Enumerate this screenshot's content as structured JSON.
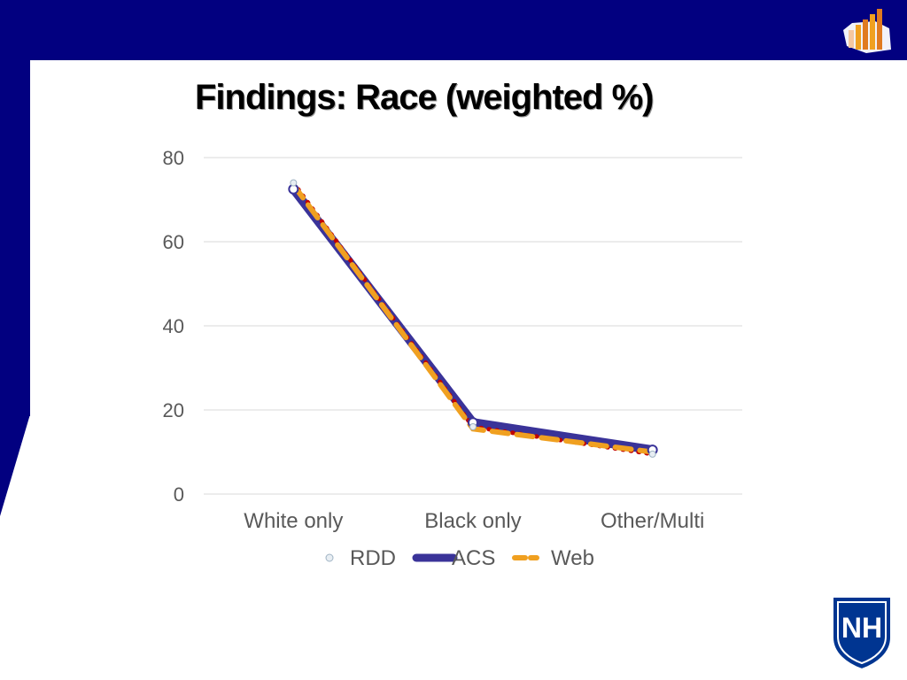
{
  "slide": {
    "title": "Findings: Race (weighted %)",
    "colors": {
      "band": "#020080",
      "rdd": "#c00000",
      "acs": "#3a3399",
      "web": "#f0a020",
      "shield": "#003591"
    }
  },
  "logos": {
    "top_right": "survey-bar-chart-logo",
    "bottom_right": "unh-shield-logo",
    "shield_text": "NH"
  },
  "chart_data": {
    "type": "line",
    "title": "",
    "xlabel": "",
    "ylabel": "",
    "categories": [
      "White only",
      "Black only",
      "Other/Multi"
    ],
    "ylim": [
      0,
      80
    ],
    "yticks": [
      0,
      20,
      40,
      60,
      80
    ],
    "grid": true,
    "legend_position": "bottom",
    "series": [
      {
        "name": "RDD",
        "values": [
          74,
          16,
          9.5
        ],
        "color": "#c00000",
        "style": "dotted"
      },
      {
        "name": "ACS",
        "values": [
          72.5,
          17,
          10.5
        ],
        "color": "#3a3399",
        "style": "solid-thick"
      },
      {
        "name": "Web",
        "values": [
          73.5,
          15.5,
          10
        ],
        "color": "#f0a020",
        "style": "dashed"
      }
    ]
  }
}
